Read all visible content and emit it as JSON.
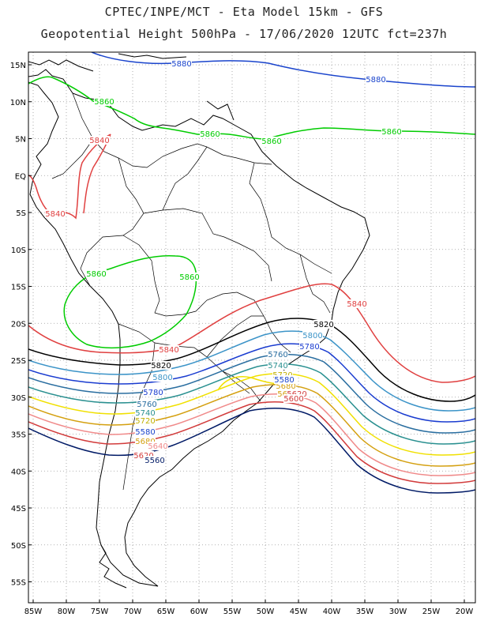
{
  "header": {
    "line1": "CPTEC/INPE/MCT -  Eta Model 15km - GFS",
    "line2": "Geopotential Height 500hPa - 17/06/2020 12UTC fct=237h"
  },
  "axes": {
    "lat_labels": [
      "15N",
      "10N",
      "5N",
      "EQ",
      "5S",
      "10S",
      "15S",
      "20S",
      "25S",
      "30S",
      "35S",
      "40S",
      "45S",
      "50S",
      "55S"
    ],
    "lon_labels": [
      "85W",
      "80W",
      "75W",
      "70W",
      "65W",
      "60W",
      "55W",
      "50W",
      "45W",
      "40W",
      "35W",
      "30W",
      "25W",
      "20W"
    ]
  },
  "colors": {
    "c5560": "#001a66",
    "c5600": "#d23c3c",
    "c5640": "#f08a8a",
    "c5680": "#d4a010",
    "c5720": "#f0e000",
    "c5740": "#2a9090",
    "c5760": "#2a6ea0",
    "c5780": "#1a3cd0",
    "c5800": "#3c94c8",
    "c5820": "#000000",
    "c5840": "#e04040",
    "c5860": "#00cc00",
    "c5880": "#1a44cc"
  },
  "contour_labels": [
    {
      "id": "l1",
      "text": "5880",
      "color": "#1a44cc"
    },
    {
      "id": "l2",
      "text": "5880",
      "color": "#1a44cc"
    },
    {
      "id": "l3",
      "text": "5860",
      "color": "#00cc00"
    },
    {
      "id": "l4",
      "text": "5860",
      "color": "#00cc00"
    },
    {
      "id": "l5",
      "text": "5860",
      "color": "#00cc00"
    },
    {
      "id": "l6",
      "text": "5860",
      "color": "#00cc00"
    },
    {
      "id": "l7",
      "text": "5860",
      "color": "#00cc00"
    },
    {
      "id": "l8",
      "text": "5860",
      "color": "#00cc00"
    },
    {
      "id": "l9",
      "text": "5840",
      "color": "#e04040"
    },
    {
      "id": "l10",
      "text": "5840",
      "color": "#e04040"
    },
    {
      "id": "l11",
      "text": "5840",
      "color": "#e04040"
    },
    {
      "id": "l12",
      "text": "5840",
      "color": "#e04040"
    },
    {
      "id": "l13",
      "text": "5820",
      "color": "#000000"
    },
    {
      "id": "l14",
      "text": "5820",
      "color": "#000000"
    },
    {
      "id": "l15",
      "text": "5800",
      "color": "#3c94c8"
    },
    {
      "id": "l16",
      "text": "5800",
      "color": "#3c94c8"
    },
    {
      "id": "l17",
      "text": "5780",
      "color": "#1a3cd0"
    },
    {
      "id": "l18",
      "text": "5780",
      "color": "#1a3cd0"
    },
    {
      "id": "l19",
      "text": "5760",
      "color": "#2a6ea0"
    },
    {
      "id": "l20",
      "text": "5760",
      "color": "#2a6ea0"
    },
    {
      "id": "l21",
      "text": "5740",
      "color": "#2a9090"
    },
    {
      "id": "l22",
      "text": "5740",
      "color": "#2a9090"
    },
    {
      "id": "l23",
      "text": "5720",
      "color": "#c0b000"
    },
    {
      "id": "l24",
      "text": "5720",
      "color": "#c0b000"
    },
    {
      "id": "l25",
      "text": "5680",
      "color": "#d4a010"
    },
    {
      "id": "l26",
      "text": "5680",
      "color": "#d4a010"
    },
    {
      "id": "l27",
      "text": "5660",
      "color": "#d4a010"
    },
    {
      "id": "l28",
      "text": "5640",
      "color": "#f08a8a"
    },
    {
      "id": "l29",
      "text": "5620",
      "color": "#d23c3c"
    },
    {
      "id": "l30",
      "text": "5620",
      "color": "#d23c3c"
    },
    {
      "id": "l31",
      "text": "5600",
      "color": "#d23c3c"
    },
    {
      "id": "l32",
      "text": "5560",
      "color": "#001a66"
    },
    {
      "id": "l33",
      "text": "5580",
      "color": "#1a44cc"
    },
    {
      "id": "l34",
      "text": "5580",
      "color": "#1a44cc"
    }
  ]
}
